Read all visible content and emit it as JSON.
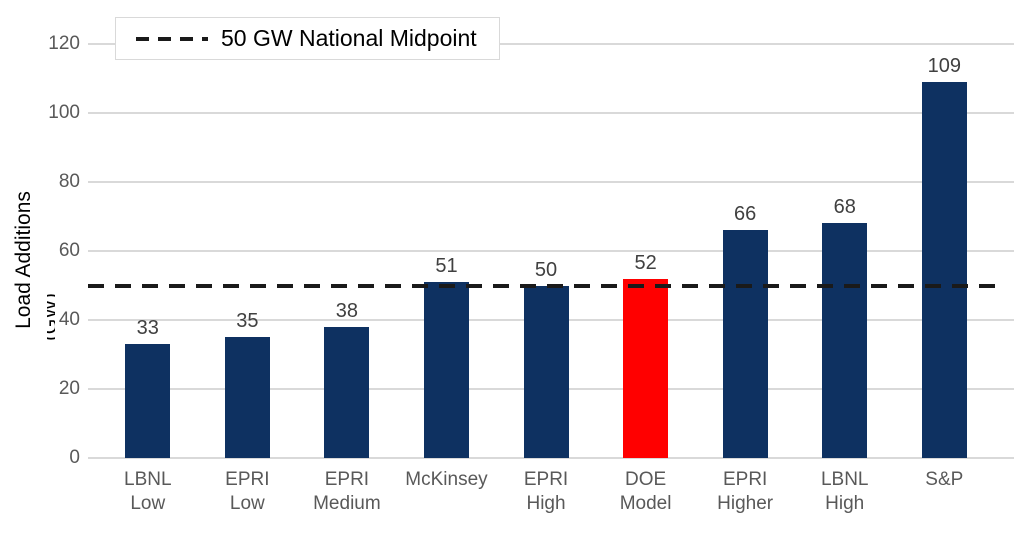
{
  "chart_data": {
    "type": "bar",
    "title": "",
    "ylabel": "Load Additions",
    "ylabel_unit": "(GW)",
    "xlabel": "",
    "categories": [
      "LBNL\nLow",
      "EPRI\nLow",
      "EPRI\nMedium",
      "McKinsey",
      "EPRI\nHigh",
      "DOE\nModel",
      "EPRI\nHigher",
      "LBNL\nHigh",
      "S&P"
    ],
    "values": [
      33,
      35,
      38,
      51,
      50,
      52,
      66,
      68,
      109
    ],
    "highlight_index": 5,
    "ylim": [
      0,
      120
    ],
    "yticks": [
      0,
      20,
      40,
      60,
      80,
      100,
      120
    ],
    "grid": true,
    "legend_position": "top-left",
    "reference_line": {
      "value": 50,
      "label": "50 GW National Midpoint",
      "style": "dashed"
    },
    "colors": {
      "bar_default": "#0e3161",
      "bar_highlight": "#ff0000",
      "gridline": "#d9d9d9",
      "tick_label": "#595959",
      "value_label": "#404040",
      "reference_line": "#1a1a1a",
      "legend_border": "#d9d9d9"
    }
  }
}
